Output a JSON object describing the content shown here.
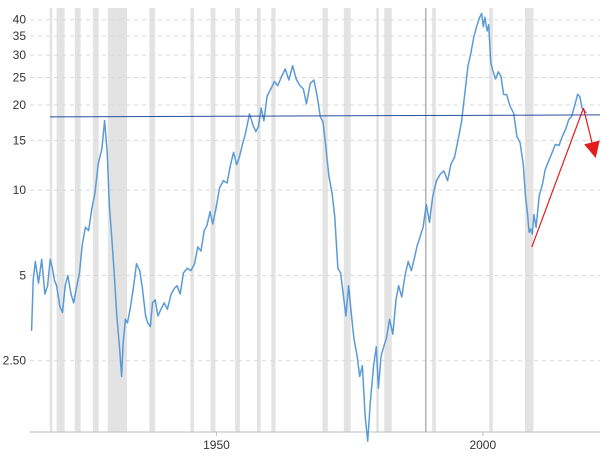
{
  "chart_data": {
    "type": "line",
    "title": "",
    "xlabel": "",
    "ylabel": "",
    "y_scale": "log",
    "ylim": [
      1.4,
      44
    ],
    "xlim": [
      1915,
      2022
    ],
    "y_ticks": [
      {
        "value": 40,
        "label": "40"
      },
      {
        "value": 35,
        "label": "35"
      },
      {
        "value": 30,
        "label": "30"
      },
      {
        "value": 25,
        "label": "25"
      },
      {
        "value": 20,
        "label": "20"
      },
      {
        "value": 15,
        "label": "15"
      },
      {
        "value": 10,
        "label": "10"
      },
      {
        "value": 5,
        "label": "5"
      },
      {
        "value": 2.5,
        "label": "2.50"
      }
    ],
    "x_ticks": [
      {
        "value": 1950,
        "label": "1950"
      },
      {
        "value": 2000,
        "label": "2000"
      }
    ],
    "grid": "horizontal dashed",
    "colors": {
      "series": "#5b9bd5",
      "recession": "#e3e3e3",
      "reference_line": "#2b4ea0",
      "trend_arrow": "#e31c1c",
      "marker_line": "#a0a0a0",
      "axis": "#bfbfbf"
    },
    "recessions": [
      [
        1918.7,
        1919.2
      ],
      [
        1920.0,
        1921.5
      ],
      [
        1923.4,
        1924.5
      ],
      [
        1926.8,
        1927.9
      ],
      [
        1929.6,
        1933.2
      ],
      [
        1937.4,
        1938.5
      ],
      [
        1945.1,
        1945.8
      ],
      [
        1948.9,
        1949.8
      ],
      [
        1953.5,
        1954.4
      ],
      [
        1957.6,
        1958.3
      ],
      [
        1960.3,
        1961.1
      ],
      [
        1969.9,
        1970.9
      ],
      [
        1973.9,
        1975.2
      ],
      [
        1980.0,
        1980.5
      ],
      [
        1981.5,
        1982.9
      ],
      [
        1990.5,
        1991.2
      ],
      [
        2001.2,
        2001.9
      ],
      [
        2007.9,
        2009.5
      ]
    ],
    "reference_line": {
      "y": 18.3
    },
    "vertical_marker": {
      "x": 1989.3
    },
    "trend_line": {
      "from": [
        2009.2,
        6.3
      ],
      "to": [
        2018.9,
        19.5
      ]
    },
    "arrow": {
      "from": [
        2018.9,
        19.5
      ],
      "to": [
        2021.2,
        13.0
      ]
    },
    "series": [
      {
        "x": [
          1915.3,
          1915.6,
          1916.0,
          1916.6,
          1917.2,
          1917.8,
          1918.3,
          1918.8,
          1919.2,
          1919.6,
          1920.0,
          1920.6,
          1921.1,
          1921.6,
          1922.1,
          1922.7,
          1923.2,
          1923.7,
          1924.3,
          1924.8,
          1925.4,
          1926.0,
          1926.6,
          1927.2,
          1927.8,
          1928.5,
          1929.0,
          1929.5,
          1929.9,
          1930.3,
          1930.8,
          1931.3,
          1931.8,
          1932.2,
          1932.5,
          1932.9,
          1933.3,
          1933.8,
          1934.4,
          1935.0,
          1935.6,
          1936.1,
          1936.7,
          1937.1,
          1937.6,
          1938.0,
          1938.5,
          1939.0,
          1939.6,
          1940.2,
          1940.8,
          1941.5,
          1942.1,
          1942.6,
          1943.2,
          1943.8,
          1944.5,
          1945.2,
          1945.9,
          1946.5,
          1947.1,
          1947.7,
          1948.2,
          1948.8,
          1949.3,
          1949.9,
          1950.6,
          1951.3,
          1952.0,
          1952.6,
          1953.2,
          1953.8,
          1954.3,
          1954.9,
          1955.5,
          1956.2,
          1956.9,
          1957.4,
          1957.9,
          1958.4,
          1958.9,
          1959.5,
          1960.2,
          1960.9,
          1961.5,
          1962.2,
          1962.9,
          1963.6,
          1964.3,
          1965.0,
          1965.6,
          1966.3,
          1966.9,
          1967.6,
          1968.3,
          1968.9,
          1969.5,
          1970.0,
          1970.5,
          1971.1,
          1971.7,
          1972.2,
          1972.8,
          1973.3,
          1973.8,
          1974.3,
          1974.8,
          1975.3,
          1975.8,
          1976.4,
          1976.9,
          1977.4,
          1977.9,
          1978.4,
          1978.9,
          1979.5,
          1980.0,
          1980.4,
          1980.9,
          1981.4,
          1981.9,
          1982.5,
          1983.1,
          1983.7,
          1984.2,
          1984.8,
          1985.4,
          1986.0,
          1986.6,
          1987.2,
          1987.7,
          1988.2,
          1988.8,
          1989.4,
          1990.0,
          1990.6,
          1991.3,
          1992.0,
          1992.7,
          1993.4,
          1994.0,
          1994.7,
          1995.4,
          1996.0,
          1996.6,
          1997.2,
          1997.8,
          1998.3,
          1998.8,
          1999.3,
          1999.8,
          2000.1,
          2000.4,
          2000.8,
          2001.1,
          2001.5,
          2001.9,
          2002.4,
          2002.9,
          2003.4,
          2003.9,
          2004.5,
          2005.1,
          2005.8,
          2006.4,
          2007.0,
          2007.6,
          2008.0,
          2008.4,
          2008.7,
          2009.0,
          2009.3,
          2009.6,
          2010.0,
          2010.6,
          2011.2,
          2011.7,
          2012.3,
          2012.9,
          2013.6,
          2014.3,
          2015.0,
          2015.6,
          2016.1,
          2016.7,
          2017.3,
          2017.8,
          2018.2,
          2018.6,
          2019.0,
          2019.4
        ],
        "y": [
          3.2,
          4.8,
          5.6,
          4.7,
          5.7,
          4.3,
          4.6,
          5.7,
          5.3,
          4.8,
          4.6,
          3.9,
          3.7,
          4.6,
          5.0,
          4.3,
          4.0,
          4.5,
          5.1,
          6.4,
          7.4,
          7.2,
          8.6,
          9.8,
          12.4,
          14.0,
          17.6,
          13.6,
          8.8,
          7.0,
          5.1,
          3.6,
          2.8,
          2.2,
          2.9,
          3.5,
          3.4,
          3.8,
          4.5,
          5.5,
          5.2,
          4.5,
          3.6,
          3.4,
          3.3,
          4.0,
          4.1,
          3.6,
          3.8,
          4.0,
          3.8,
          4.3,
          4.5,
          4.6,
          4.3,
          5.1,
          5.3,
          5.2,
          5.5,
          6.3,
          6.1,
          7.2,
          7.5,
          8.4,
          7.6,
          8.6,
          10.2,
          10.8,
          10.6,
          12.2,
          13.6,
          12.3,
          13.1,
          14.6,
          16.0,
          18.6,
          16.9,
          16.1,
          16.8,
          19.5,
          17.6,
          21.5,
          22.8,
          24.2,
          23.4,
          25.1,
          26.8,
          24.5,
          27.5,
          24.6,
          23.5,
          22.8,
          20.2,
          23.8,
          24.5,
          21.6,
          18.2,
          17.4,
          14.4,
          11.2,
          9.8,
          8.1,
          5.3,
          5.1,
          4.3,
          3.6,
          4.6,
          3.7,
          3.0,
          2.6,
          2.2,
          2.4,
          1.6,
          1.3,
          1.8,
          2.4,
          2.8,
          2.0,
          2.6,
          2.8,
          3.0,
          3.5,
          3.1,
          4.1,
          4.6,
          4.2,
          5.0,
          5.6,
          5.2,
          5.8,
          6.4,
          6.8,
          7.4,
          8.9,
          7.7,
          9.5,
          10.8,
          11.4,
          11.7,
          10.8,
          12.3,
          13.1,
          15.2,
          17.4,
          21.8,
          27.3,
          30.8,
          34.6,
          37.6,
          40.4,
          42.1,
          37.8,
          40.8,
          36.5,
          38.4,
          28.2,
          26.4,
          24.7,
          26.2,
          25.3,
          21.8,
          21.7,
          19.8,
          18.7,
          15.5,
          14.7,
          12.3,
          9.6,
          8.2,
          7.1,
          7.3,
          7.0,
          8.2,
          7.4,
          9.6,
          10.5,
          11.8,
          12.6,
          13.4,
          14.5,
          14.4,
          15.6,
          16.5,
          17.7,
          18.3,
          20.1,
          21.8,
          21.4,
          19.6,
          19.1,
          18.8
        ]
      }
    ]
  }
}
